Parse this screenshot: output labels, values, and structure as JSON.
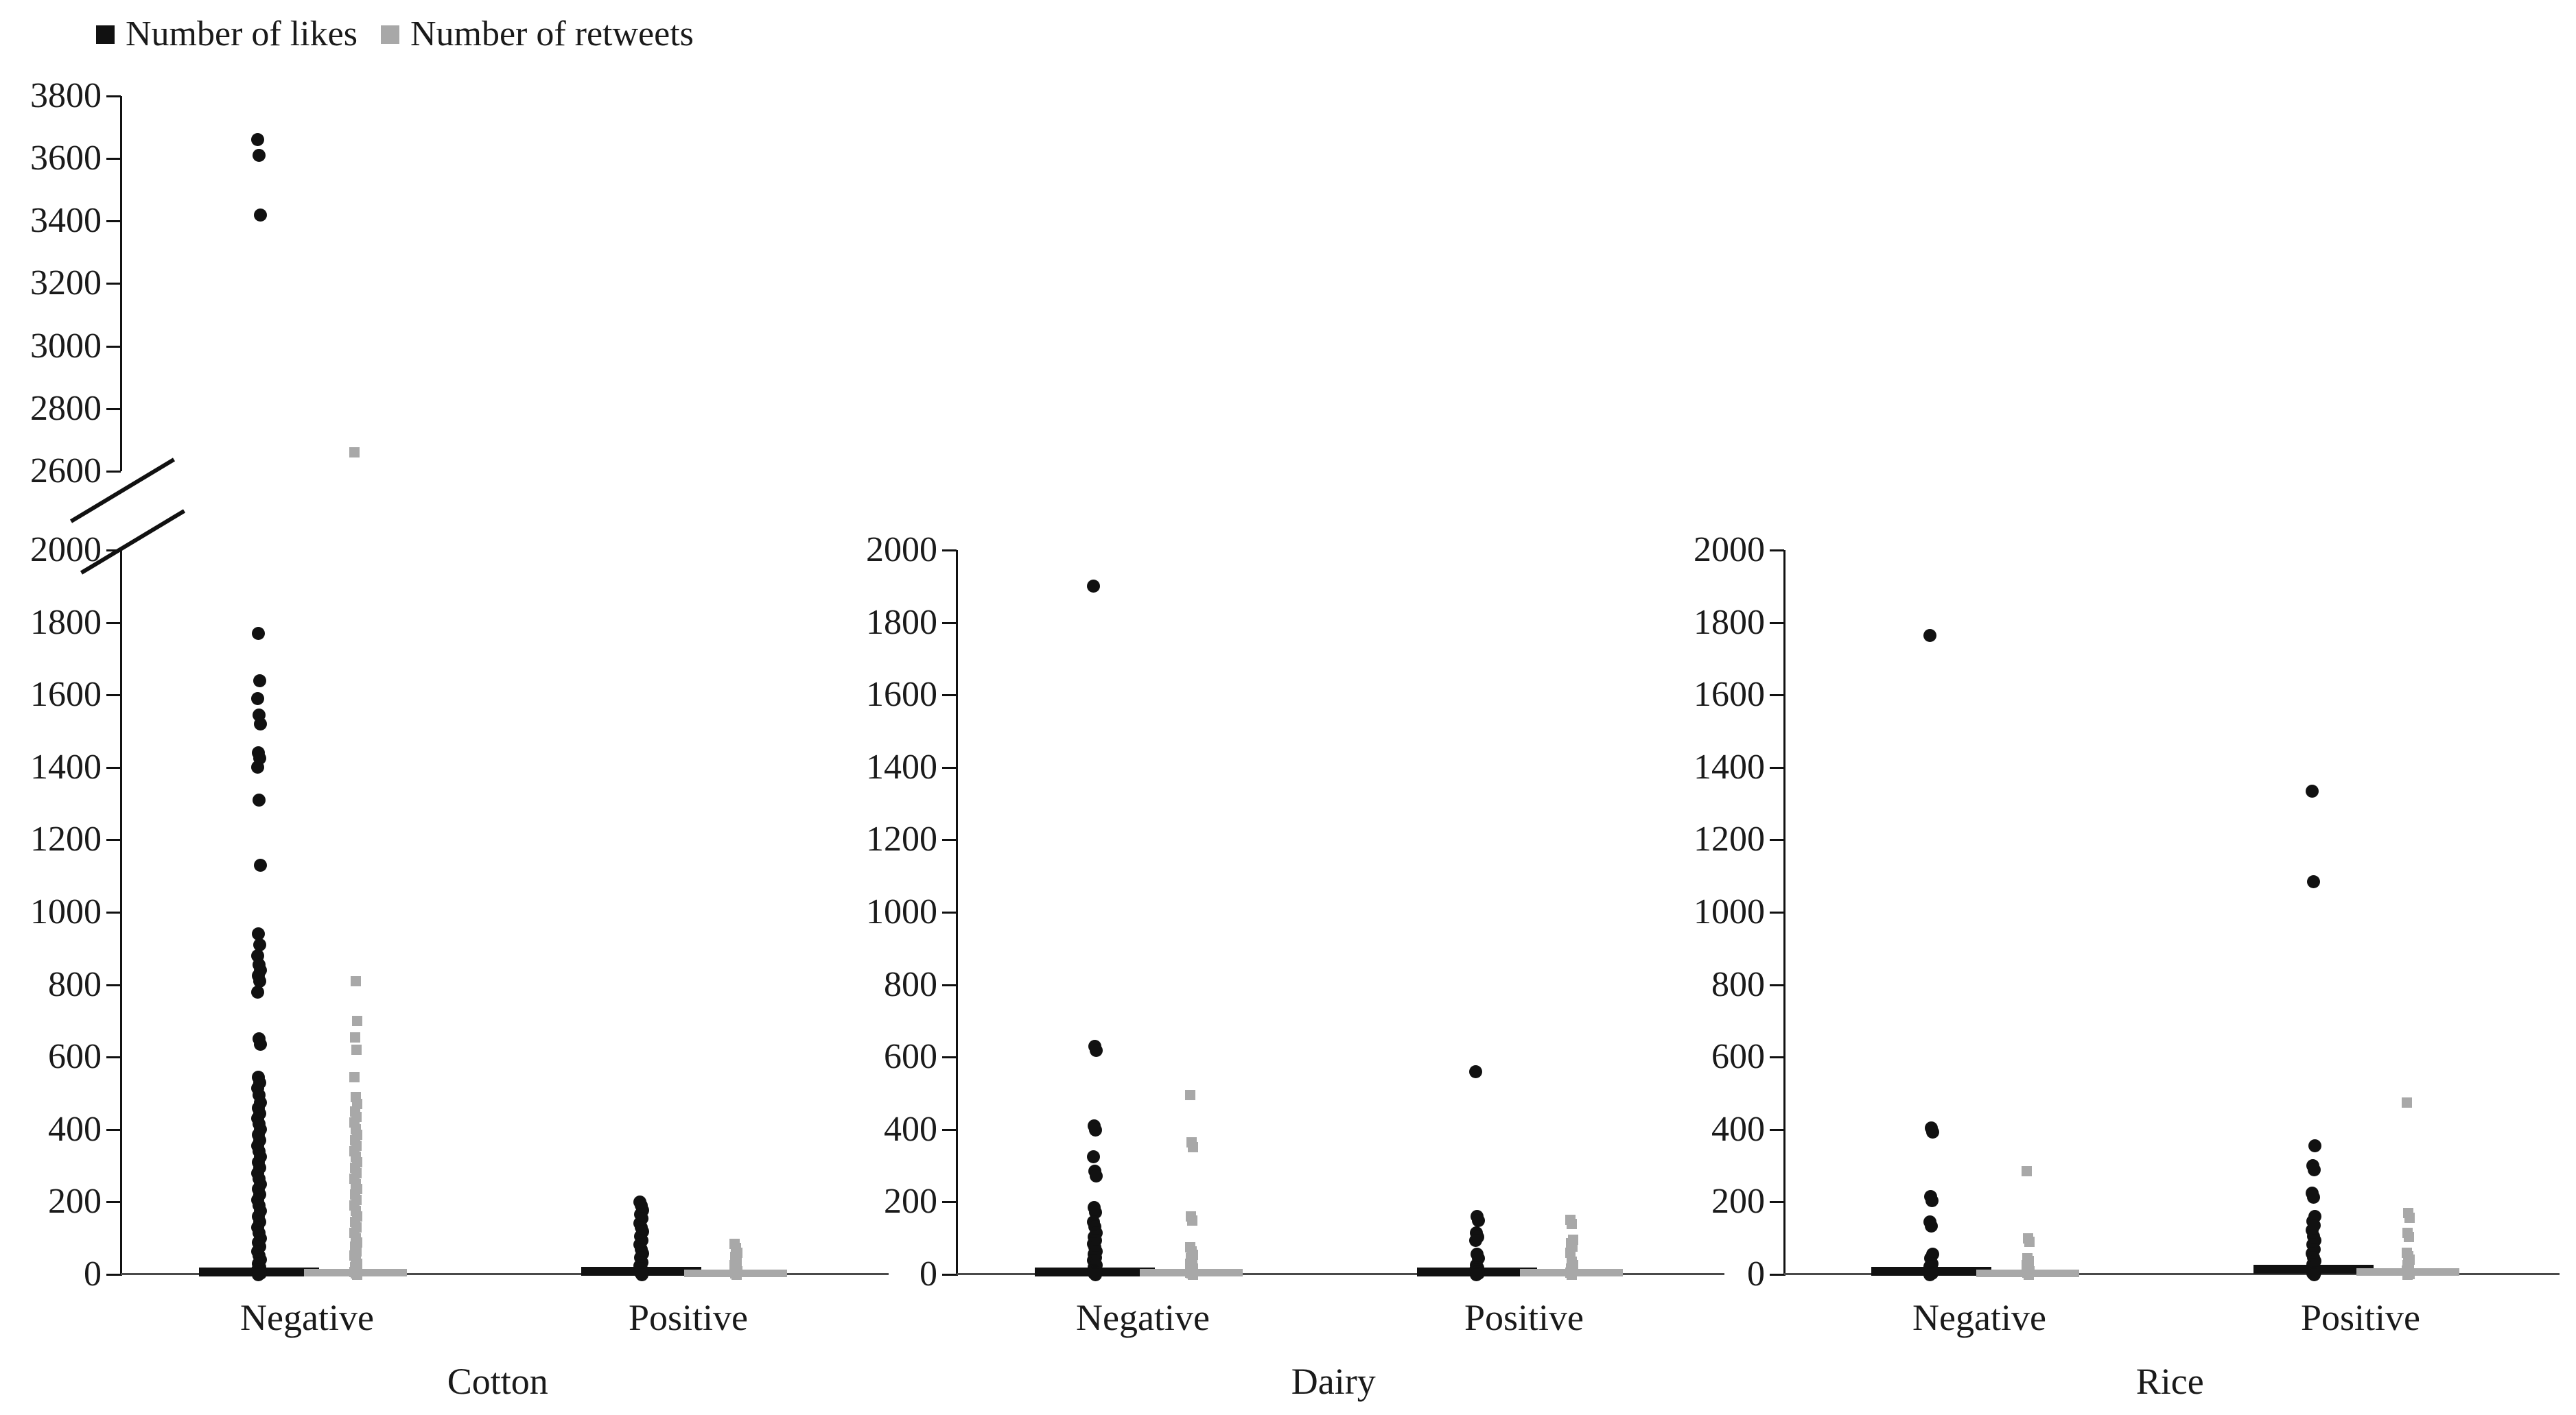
{
  "colors": {
    "likes": "#111111",
    "retweets": "#a8a8a8",
    "axis": "#111111",
    "baseline": "#4a4a4a",
    "text": "#1a1a1a"
  },
  "legend": {
    "items": [
      {
        "label": "Number of likes",
        "color": "#111111",
        "marker": "square"
      },
      {
        "label": "Number of retweets",
        "color": "#a8a8a8",
        "marker": "square"
      }
    ]
  },
  "chart_data": {
    "type": "scatter",
    "title": "",
    "xlabel": "",
    "ylabel": "",
    "grid": false,
    "legend_position": "top-left",
    "y_axis": {
      "lower_range": [
        0,
        2000
      ],
      "upper_range": [
        2600,
        3800
      ],
      "tick_step": 200,
      "lower_ticks": [
        0,
        200,
        400,
        600,
        800,
        1000,
        1200,
        1400,
        1600,
        1800,
        2000
      ],
      "upper_ticks": [
        2600,
        2800,
        3000,
        3200,
        3400,
        3600,
        3800
      ],
      "axis_break_between": [
        2000,
        2600
      ]
    },
    "series_names": [
      "Number of likes",
      "Number of retweets"
    ],
    "panels": [
      {
        "label": "Cotton",
        "broken_axis": true,
        "groups": [
          {
            "category": "Negative",
            "series": [
              {
                "name": "Number of likes",
                "mean": 6,
                "values": [
                  3660,
                  3610,
                  3420,
                  1770,
                  1640,
                  1590,
                  1545,
                  1520,
                  1440,
                  1425,
                  1400,
                  1310,
                  1130,
                  940,
                  910,
                  880,
                  855,
                  840,
                  825,
                  810,
                  780,
                  650,
                  635,
                  545,
                  530,
                  515,
                  495,
                  475,
                  460,
                  445,
                  430,
                  415,
                  400,
                  385,
                  370,
                  355,
                  340,
                  325,
                  310,
                  295,
                  280,
                  265,
                  250,
                  235,
                  220,
                  205,
                  190,
                  175,
                  160,
                  145,
                  130,
                  115,
                  100,
                  88,
                  76,
                  64,
                  52,
                  40,
                  30,
                  20,
                  12,
                  6,
                  2,
                  0
                ]
              },
              {
                "name": "Number of retweets",
                "mean": 4,
                "values": [
                  2660,
                  810,
                  700,
                  655,
                  620,
                  545,
                  490,
                  470,
                  450,
                  435,
                  420,
                  400,
                  385,
                  370,
                  355,
                  340,
                  325,
                  310,
                  295,
                  280,
                  265,
                  250,
                  235,
                  220,
                  205,
                  190,
                  175,
                  160,
                  145,
                  130,
                  115,
                  100,
                  88,
                  76,
                  64,
                  52,
                  40,
                  30,
                  20,
                  12,
                  6,
                  2,
                  0
                ]
              }
            ]
          },
          {
            "category": "Positive",
            "series": [
              {
                "name": "Number of likes",
                "mean": 8,
                "values": [
                  200,
                  190,
                  178,
                  166,
                  154,
                  142,
                  130,
                  118,
                  106,
                  94,
                  82,
                  70,
                  58,
                  46,
                  34,
                  24,
                  16,
                  9,
                  4,
                  0
                ]
              },
              {
                "name": "Number of retweets",
                "mean": 3,
                "values": [
                  85,
                  72,
                  60,
                  48,
                  36,
                  25,
                  15,
                  8,
                  3,
                  0
                ]
              }
            ]
          }
        ]
      },
      {
        "label": "Dairy",
        "broken_axis": false,
        "groups": [
          {
            "category": "Negative",
            "series": [
              {
                "name": "Number of likes",
                "mean": 7,
                "values": [
                  1900,
                  630,
                  618,
                  410,
                  398,
                  325,
                  285,
                  272,
                  185,
                  172,
                  145,
                  132,
                  115,
                  104,
                  94,
                  84,
                  74,
                  64,
                  55,
                  47,
                  39,
                  32,
                  26,
                  20,
                  15,
                  11,
                  7,
                  4,
                  2,
                  0
                ]
              },
              {
                "name": "Number of retweets",
                "mean": 4,
                "values": [
                  495,
                  365,
                  352,
                  160,
                  148,
                  75,
                  64,
                  54,
                  45,
                  37,
                  30,
                  23,
                  17,
                  12,
                  8,
                  5,
                  2,
                  0
                ]
              }
            ]
          },
          {
            "category": "Positive",
            "series": [
              {
                "name": "Number of likes",
                "mean": 7,
                "values": [
                  560,
                  160,
                  148,
                  115,
                  104,
                  94,
                  55,
                  45,
                  25,
                  18,
                  12,
                  7,
                  3,
                  0
                ]
              },
              {
                "name": "Number of retweets",
                "mean": 4,
                "values": [
                  150,
                  140,
                  95,
                  86,
                  76,
                  60,
                  35,
                  25,
                  16,
                  9,
                  4,
                  0
                ]
              }
            ]
          }
        ]
      },
      {
        "label": "Rice",
        "broken_axis": false,
        "groups": [
          {
            "category": "Negative",
            "series": [
              {
                "name": "Number of likes",
                "mean": 8,
                "values": [
                  1765,
                  405,
                  393,
                  215,
                  203,
                  145,
                  133,
                  55,
                  45,
                  30,
                  22,
                  15,
                  9,
                  5,
                  2,
                  0
                ]
              },
              {
                "name": "Number of retweets",
                "mean": 3,
                "values": [
                  285,
                  100,
                  90,
                  45,
                  36,
                  25,
                  16,
                  9,
                  4,
                  0
                ]
              }
            ]
          },
          {
            "category": "Positive",
            "series": [
              {
                "name": "Number of likes",
                "mean": 15,
                "values": [
                  1335,
                  1085,
                  355,
                  300,
                  288,
                  225,
                  213,
                  160,
                  147,
                  135,
                  123,
                  105,
                  93,
                  82,
                  70,
                  58,
                  47,
                  37,
                  28,
                  20,
                  14,
                  9,
                  5,
                  2,
                  0
                ]
              },
              {
                "name": "Number of retweets",
                "mean": 6,
                "values": [
                  475,
                  170,
                  156,
                  115,
                  104,
                  60,
                  50,
                  40,
                  25,
                  17,
                  10,
                  5,
                  1,
                  0
                ]
              }
            ]
          }
        ]
      }
    ]
  }
}
